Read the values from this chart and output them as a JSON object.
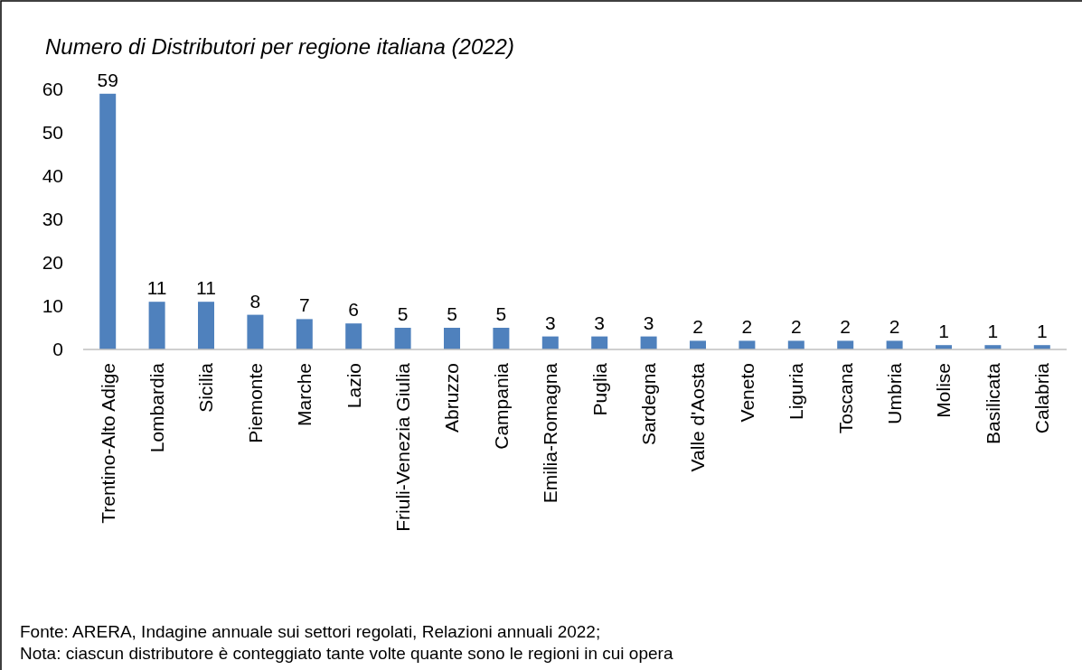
{
  "chart_data": {
    "type": "bar",
    "title": "Numero di Distributori per regione italiana (2022)",
    "categories": [
      "Trentino-Alto Adige",
      "Lombardia",
      "Sicilia",
      "Piemonte",
      "Marche",
      "Lazio",
      "Friuli-Venezia Giulia",
      "Abruzzo",
      "Campania",
      "Emilia-Romagna",
      "Puglia",
      "Sardegna",
      "Valle d'Aosta",
      "Veneto",
      "Liguria",
      "Toscana",
      "Umbria",
      "Molise",
      "Basilicata",
      "Calabria"
    ],
    "values": [
      59,
      11,
      11,
      8,
      7,
      6,
      5,
      5,
      5,
      3,
      3,
      3,
      2,
      2,
      2,
      2,
      2,
      1,
      1,
      1
    ],
    "color": "#4f81bd",
    "ylim": [
      0,
      60
    ],
    "yticks": [
      0,
      10,
      20,
      30,
      40,
      50,
      60
    ],
    "data_labels": true,
    "annotations": [
      "Fonte: ARERA, Indagine annuale sui settori regolati, Relazioni annuali 2022;",
      "Nota: ciascun distributore è conteggiato tante volte quante sono le regioni in cui opera"
    ]
  }
}
